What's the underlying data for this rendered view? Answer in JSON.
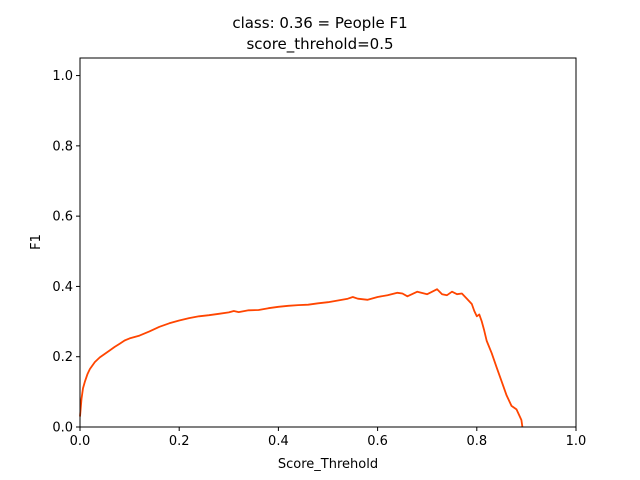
{
  "chart_data": {
    "type": "line",
    "title": "class: 0.36 = People F1",
    "subtitle": "score_threhold=0.5",
    "xlabel": "Score_Threhold",
    "ylabel": "F1",
    "xlim": [
      0.0,
      1.0
    ],
    "ylim": [
      0.0,
      1.05
    ],
    "xticks": [
      "0.0",
      "0.2",
      "0.4",
      "0.6",
      "0.8",
      "1.0"
    ],
    "yticks": [
      "0.0",
      "0.2",
      "0.4",
      "0.6",
      "0.8",
      "1.0"
    ],
    "grid": false,
    "series": [
      {
        "color": "#ff4500",
        "x": [
          0.0,
          0.003,
          0.006,
          0.01,
          0.015,
          0.02,
          0.03,
          0.04,
          0.05,
          0.06,
          0.07,
          0.08,
          0.09,
          0.1,
          0.12,
          0.14,
          0.16,
          0.18,
          0.2,
          0.22,
          0.24,
          0.26,
          0.28,
          0.3,
          0.31,
          0.32,
          0.34,
          0.36,
          0.38,
          0.4,
          0.42,
          0.44,
          0.46,
          0.48,
          0.5,
          0.52,
          0.54,
          0.55,
          0.56,
          0.58,
          0.6,
          0.62,
          0.64,
          0.65,
          0.66,
          0.68,
          0.7,
          0.71,
          0.72,
          0.73,
          0.74,
          0.75,
          0.76,
          0.77,
          0.78,
          0.79,
          0.795,
          0.8,
          0.805,
          0.81,
          0.815,
          0.82,
          0.83,
          0.84,
          0.85,
          0.86,
          0.87,
          0.88,
          0.89,
          0.892
        ],
        "y": [
          0.03,
          0.08,
          0.11,
          0.13,
          0.15,
          0.165,
          0.185,
          0.198,
          0.208,
          0.218,
          0.228,
          0.237,
          0.246,
          0.252,
          0.26,
          0.272,
          0.285,
          0.295,
          0.303,
          0.31,
          0.315,
          0.318,
          0.322,
          0.326,
          0.33,
          0.327,
          0.332,
          0.333,
          0.338,
          0.342,
          0.345,
          0.347,
          0.348,
          0.352,
          0.355,
          0.36,
          0.365,
          0.37,
          0.365,
          0.362,
          0.37,
          0.375,
          0.382,
          0.38,
          0.372,
          0.385,
          0.378,
          0.385,
          0.392,
          0.378,
          0.375,
          0.385,
          0.378,
          0.38,
          0.365,
          0.35,
          0.33,
          0.315,
          0.32,
          0.3,
          0.275,
          0.245,
          0.21,
          0.17,
          0.13,
          0.09,
          0.06,
          0.05,
          0.02,
          0.0
        ]
      }
    ]
  }
}
